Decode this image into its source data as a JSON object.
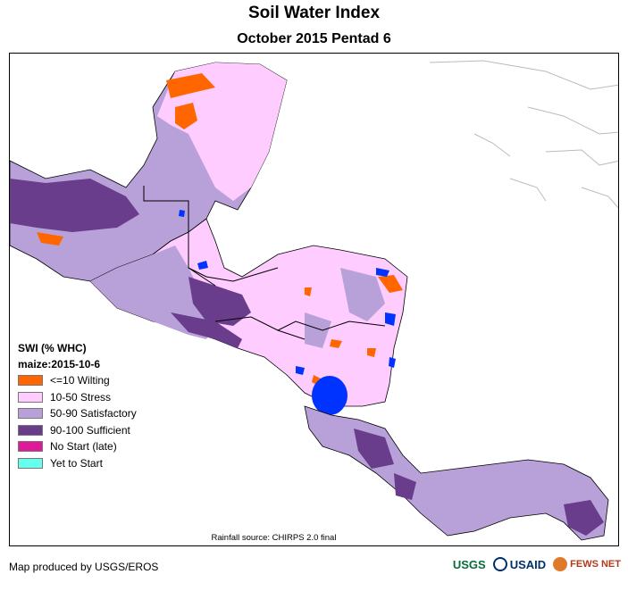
{
  "title": "Soil Water Index",
  "subtitle": "October 2015 Pentad 6",
  "legend": {
    "title": "SWI (% WHC)",
    "subtitle": "maize:2015-10-6",
    "items": [
      {
        "label": "<=10 Wilting",
        "color": "#ff6600"
      },
      {
        "label": "10-50 Stress",
        "color": "#ffccff"
      },
      {
        "label": "50-90 Satisfactory",
        "color": "#b8a0d8"
      },
      {
        "label": "90-100 Sufficient",
        "color": "#6a3c8c"
      },
      {
        "label": "No Start (late)",
        "color": "#e0189a"
      },
      {
        "label": "Yet to Start",
        "color": "#66ffee"
      }
    ]
  },
  "source": "Rainfall source: CHIRPS 2.0 final",
  "footer": "Map produced by USGS/EROS",
  "logos": {
    "usgs": "USGS",
    "usaid": "USAID",
    "fews": "FEWS NET"
  },
  "colors": {
    "water": "#0033ff",
    "border": "#000000",
    "coast_other": "#aaaaaa"
  }
}
